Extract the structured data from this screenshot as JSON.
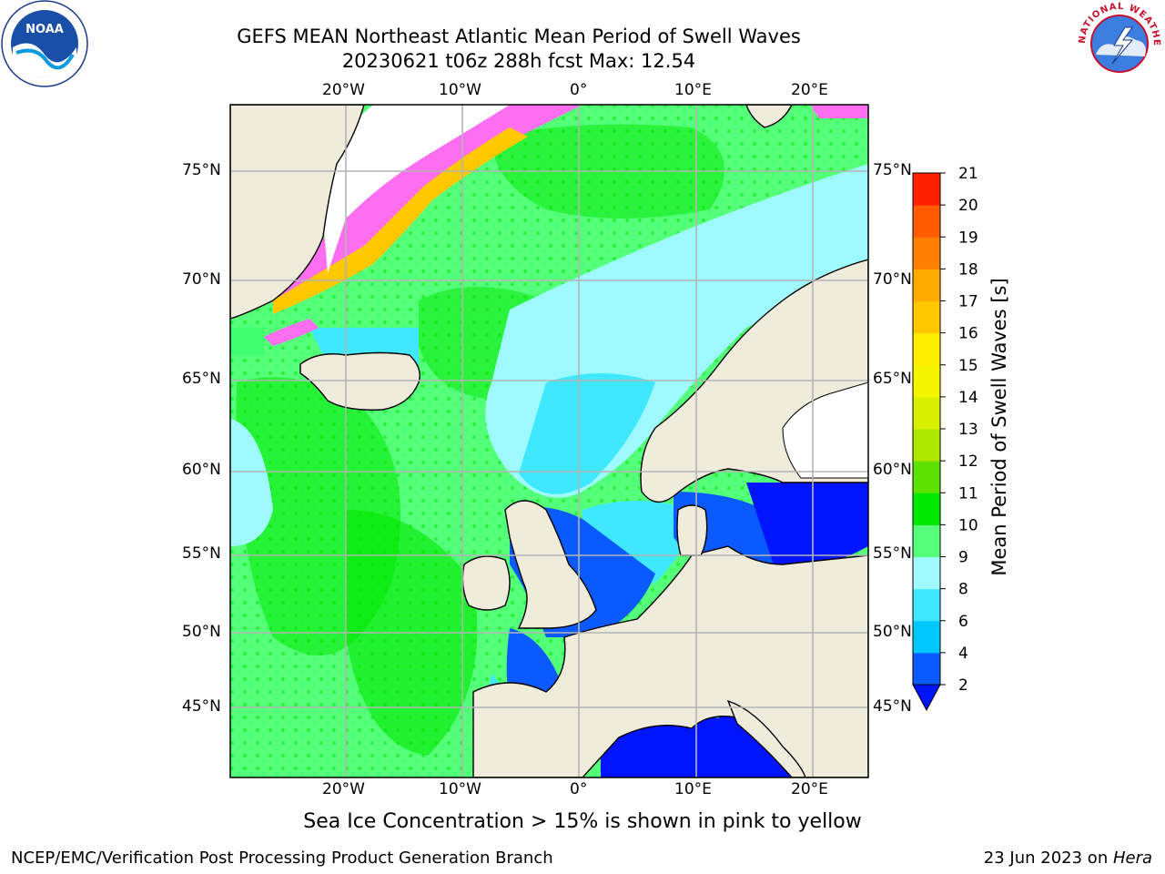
{
  "title": {
    "line1": "GEFS MEAN Northeast Atlantic Mean Period of Swell Waves",
    "line2": "20230621 t06z 288h fcst   Max: 12.54"
  },
  "map": {
    "lon_labels": [
      "20°W",
      "10°W",
      "0°",
      "10°E",
      "20°E"
    ],
    "lat_labels": [
      "75°N",
      "70°N",
      "65°N",
      "60°N",
      "55°N",
      "50°N",
      "45°N"
    ],
    "lon_range": [
      -30,
      25
    ],
    "lat_range": [
      41,
      78
    ]
  },
  "colorbar": {
    "label": "Mean Period of Swell Waves [s]",
    "ticks": [
      "2",
      "4",
      "6",
      "8",
      "9",
      "10",
      "11",
      "12",
      "13",
      "14",
      "15",
      "16",
      "17",
      "18",
      "19",
      "20",
      "21"
    ],
    "colors": [
      "#0a5aff",
      "#00c8ff",
      "#40e8ff",
      "#9ffaff",
      "#56ff7a",
      "#00e800",
      "#5ee000",
      "#aee800",
      "#d8f000",
      "#f5f500",
      "#ffee00",
      "#ffc800",
      "#ffaa00",
      "#ff8000",
      "#ff5a00",
      "#ff2000"
    ],
    "extend_color": "#0014ff"
  },
  "caption": "Sea Ice Concentration > 15% is shown in pink to yellow",
  "footer": {
    "left": "NCEP/EMC/Verification Post Processing Product Generation Branch",
    "right_date": "23 Jun 2023 on ",
    "right_machine": "Hera"
  },
  "logos": {
    "noaa_text": "NOAA",
    "nws_text": "NATIONAL WEATHER SERVICE"
  }
}
